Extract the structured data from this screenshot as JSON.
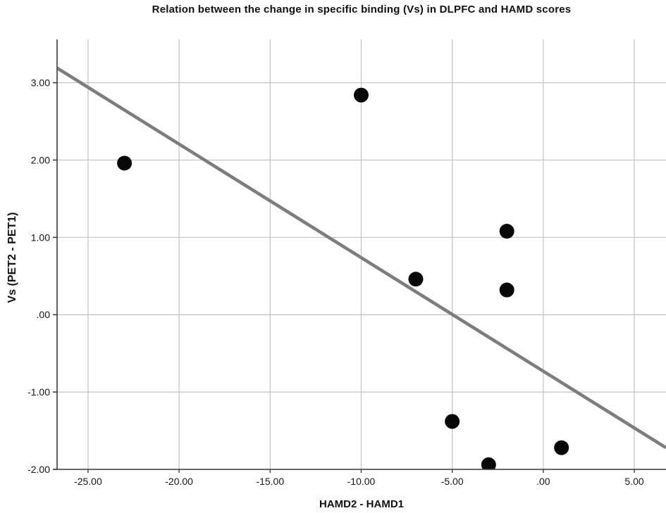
{
  "chart_data": {
    "type": "scatter",
    "title": "Relation between the change in specific binding (Vs) in DLPFC and HAMD scores",
    "xlabel": "HAMD2 - HAMD1",
    "ylabel": "Vs (PET2 - PET1)",
    "xlim": [
      -26.7,
      6.74
    ],
    "ylim": [
      -2.0,
      3.56
    ],
    "grid": true,
    "legend": "none",
    "x_ticks": [
      -25,
      -20,
      -15,
      -10,
      -5,
      0,
      5
    ],
    "x_tick_labels": [
      "-25.00",
      "-20.00",
      "-15.00",
      "-10.00",
      "-5.00",
      ".00",
      "5.00"
    ],
    "y_ticks": [
      3,
      2,
      1,
      0,
      -1,
      -2
    ],
    "y_tick_labels": [
      "3.00",
      "2.00",
      "1.00",
      ".00",
      "-1.00",
      "-2.00"
    ],
    "points": [
      {
        "x": -23,
        "y": 1.96
      },
      {
        "x": -10,
        "y": 2.84
      },
      {
        "x": -7,
        "y": 0.46
      },
      {
        "x": -5,
        "y": -1.38
      },
      {
        "x": -3,
        "y": -1.94
      },
      {
        "x": -2,
        "y": 1.08
      },
      {
        "x": -2,
        "y": 0.32
      },
      {
        "x": 1,
        "y": -1.72
      }
    ],
    "trend_line": {
      "x1": -26.7,
      "y1": 3.19,
      "x2": 6.74,
      "y2": -1.72
    },
    "colors": {
      "point": "#080808",
      "trend_line": "#7d7d7d",
      "gridline": "#c2c2c2",
      "axis_line": "#3c3c3c",
      "tick_text": "#151515",
      "background": "#ffffff"
    }
  }
}
